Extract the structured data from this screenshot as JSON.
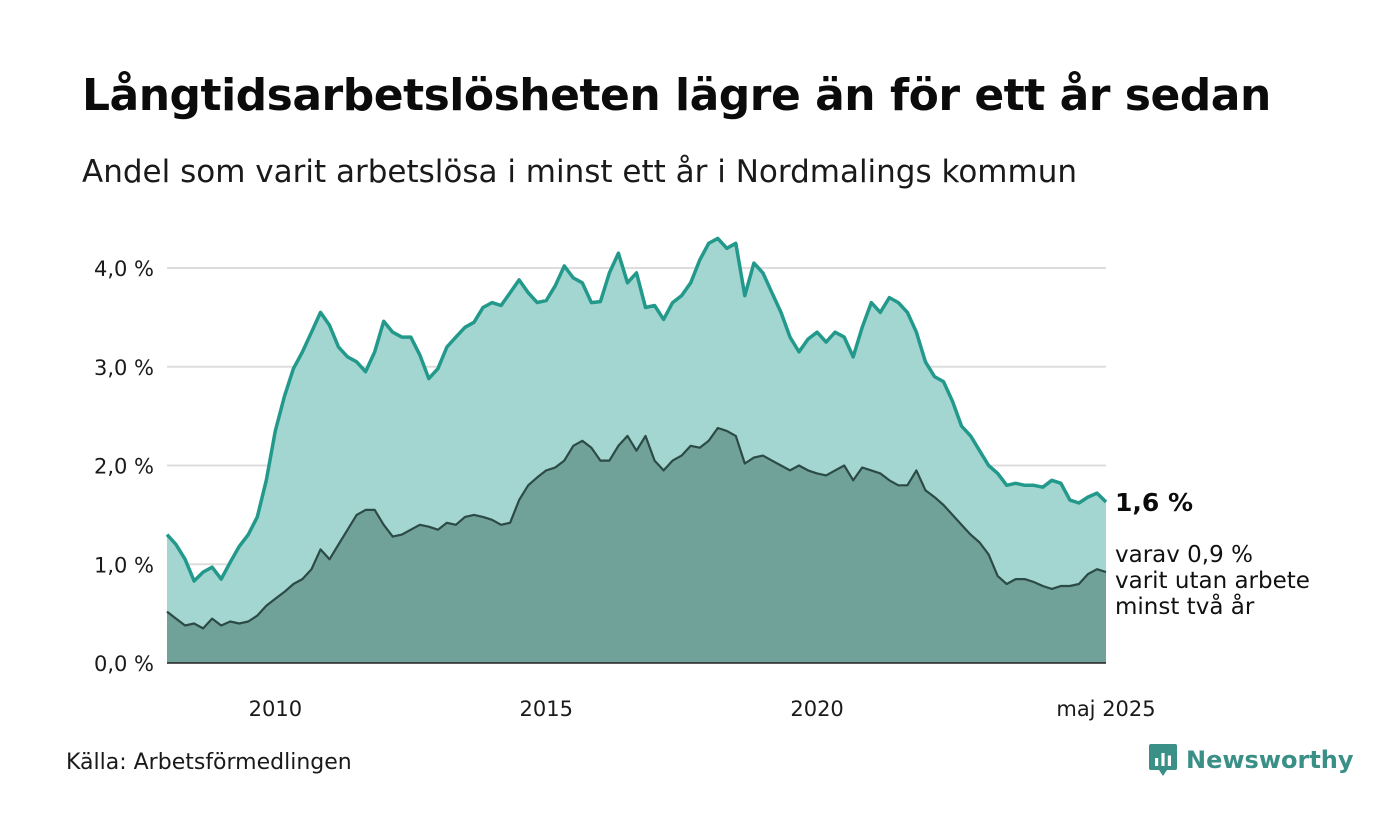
{
  "title": "Långtidsarbetslösheten lägre än för ett år sedan",
  "subtitle": "Andel som varit arbetslösa i minst ett år i Nordmalings kommun",
  "source": "Källa: Arbetsförmedlingen",
  "brand": "Newsworthy",
  "colors": {
    "total_fill": "#a3d6d0",
    "total_line": "#23998c",
    "sub_fill": "#71a29a",
    "sub_line": "#2c4a46",
    "grid": "#dddddd",
    "brand": "#3a8f86"
  },
  "end_labels": {
    "total": "1,6 %",
    "sub_line1": "varav 0,9 %",
    "sub_line2": "varit utan arbete",
    "sub_line3": "minst två år"
  },
  "chart_data": {
    "type": "area",
    "title": "Långtidsarbetslösheten lägre än för ett år sedan",
    "subtitle": "Andel som varit arbetslösa i minst ett år i Nordmalings kommun",
    "xlim": [
      "2008-01",
      "2025-05"
    ],
    "ylim": [
      0,
      4.0
    ],
    "y_ticks": [
      "0,0 %",
      "1,0 %",
      "2,0 %",
      "3,0 %",
      "4,0 %"
    ],
    "y_tick_values": [
      0,
      1,
      2,
      3,
      4
    ],
    "x_ticks": [
      "2010",
      "2015",
      "2020",
      "maj 2025"
    ],
    "x_tick_dates": [
      "2010-01",
      "2015-01",
      "2020-01",
      "2025-05"
    ],
    "grid": true,
    "series": [
      {
        "name": "1,6 %",
        "points": [
          [
            "2008-01",
            1.3
          ],
          [
            "2008-03",
            1.2
          ],
          [
            "2008-05",
            1.05
          ],
          [
            "2008-07",
            0.83
          ],
          [
            "2008-09",
            0.92
          ],
          [
            "2008-11",
            0.97
          ],
          [
            "2009-01",
            0.85
          ],
          [
            "2009-03",
            1.02
          ],
          [
            "2009-05",
            1.18
          ],
          [
            "2009-07",
            1.3
          ],
          [
            "2009-09",
            1.48
          ],
          [
            "2009-11",
            1.85
          ],
          [
            "2010-01",
            2.35
          ],
          [
            "2010-03",
            2.7
          ],
          [
            "2010-05",
            2.98
          ],
          [
            "2010-07",
            3.15
          ],
          [
            "2010-09",
            3.35
          ],
          [
            "2010-11",
            3.55
          ],
          [
            "2011-01",
            3.42
          ],
          [
            "2011-03",
            3.2
          ],
          [
            "2011-05",
            3.1
          ],
          [
            "2011-07",
            3.05
          ],
          [
            "2011-09",
            2.95
          ],
          [
            "2011-11",
            3.15
          ],
          [
            "2012-01",
            3.46
          ],
          [
            "2012-03",
            3.35
          ],
          [
            "2012-05",
            3.3
          ],
          [
            "2012-07",
            3.3
          ],
          [
            "2012-09",
            3.12
          ],
          [
            "2012-11",
            2.88
          ],
          [
            "2013-01",
            2.98
          ],
          [
            "2013-03",
            3.2
          ],
          [
            "2013-05",
            3.3
          ],
          [
            "2013-07",
            3.4
          ],
          [
            "2013-09",
            3.45
          ],
          [
            "2013-11",
            3.6
          ],
          [
            "2014-01",
            3.65
          ],
          [
            "2014-03",
            3.62
          ],
          [
            "2014-05",
            3.75
          ],
          [
            "2014-07",
            3.88
          ],
          [
            "2014-09",
            3.75
          ],
          [
            "2014-11",
            3.65
          ],
          [
            "2015-01",
            3.67
          ],
          [
            "2015-03",
            3.82
          ],
          [
            "2015-05",
            4.02
          ],
          [
            "2015-07",
            3.9
          ],
          [
            "2015-09",
            3.85
          ],
          [
            "2015-11",
            3.65
          ],
          [
            "2016-01",
            3.66
          ],
          [
            "2016-03",
            3.95
          ],
          [
            "2016-05",
            4.15
          ],
          [
            "2016-07",
            3.85
          ],
          [
            "2016-09",
            3.95
          ],
          [
            "2016-11",
            3.6
          ],
          [
            "2017-01",
            3.62
          ],
          [
            "2017-03",
            3.48
          ],
          [
            "2017-05",
            3.65
          ],
          [
            "2017-07",
            3.72
          ],
          [
            "2017-09",
            3.85
          ],
          [
            "2017-11",
            4.08
          ],
          [
            "2018-01",
            4.25
          ],
          [
            "2018-03",
            4.3
          ],
          [
            "2018-05",
            4.2
          ],
          [
            "2018-07",
            4.25
          ],
          [
            "2018-09",
            3.72
          ],
          [
            "2018-11",
            4.05
          ],
          [
            "2019-01",
            3.95
          ],
          [
            "2019-03",
            3.75
          ],
          [
            "2019-05",
            3.55
          ],
          [
            "2019-07",
            3.3
          ],
          [
            "2019-09",
            3.15
          ],
          [
            "2019-11",
            3.28
          ],
          [
            "2020-01",
            3.35
          ],
          [
            "2020-03",
            3.25
          ],
          [
            "2020-05",
            3.35
          ],
          [
            "2020-07",
            3.3
          ],
          [
            "2020-09",
            3.1
          ],
          [
            "2020-11",
            3.4
          ],
          [
            "2021-01",
            3.65
          ],
          [
            "2021-03",
            3.55
          ],
          [
            "2021-05",
            3.7
          ],
          [
            "2021-07",
            3.65
          ],
          [
            "2021-09",
            3.55
          ],
          [
            "2021-11",
            3.35
          ],
          [
            "2022-01",
            3.05
          ],
          [
            "2022-03",
            2.9
          ],
          [
            "2022-05",
            2.85
          ],
          [
            "2022-07",
            2.65
          ],
          [
            "2022-09",
            2.4
          ],
          [
            "2022-11",
            2.3
          ],
          [
            "2023-01",
            2.15
          ],
          [
            "2023-03",
            2.0
          ],
          [
            "2023-05",
            1.92
          ],
          [
            "2023-07",
            1.8
          ],
          [
            "2023-09",
            1.82
          ],
          [
            "2023-11",
            1.8
          ],
          [
            "2024-01",
            1.8
          ],
          [
            "2024-03",
            1.78
          ],
          [
            "2024-05",
            1.85
          ],
          [
            "2024-07",
            1.82
          ],
          [
            "2024-09",
            1.65
          ],
          [
            "2024-11",
            1.62
          ],
          [
            "2025-01",
            1.68
          ],
          [
            "2025-03",
            1.72
          ],
          [
            "2025-05",
            1.63
          ]
        ]
      },
      {
        "name": "varav 0,9 %",
        "points": [
          [
            "2008-01",
            0.52
          ],
          [
            "2008-03",
            0.45
          ],
          [
            "2008-05",
            0.38
          ],
          [
            "2008-07",
            0.4
          ],
          [
            "2008-09",
            0.35
          ],
          [
            "2008-11",
            0.45
          ],
          [
            "2009-01",
            0.38
          ],
          [
            "2009-03",
            0.42
          ],
          [
            "2009-05",
            0.4
          ],
          [
            "2009-07",
            0.42
          ],
          [
            "2009-09",
            0.48
          ],
          [
            "2009-11",
            0.58
          ],
          [
            "2010-01",
            0.65
          ],
          [
            "2010-03",
            0.72
          ],
          [
            "2010-05",
            0.8
          ],
          [
            "2010-07",
            0.85
          ],
          [
            "2010-09",
            0.95
          ],
          [
            "2010-11",
            1.15
          ],
          [
            "2011-01",
            1.05
          ],
          [
            "2011-03",
            1.2
          ],
          [
            "2011-05",
            1.35
          ],
          [
            "2011-07",
            1.5
          ],
          [
            "2011-09",
            1.55
          ],
          [
            "2011-11",
            1.55
          ],
          [
            "2012-01",
            1.4
          ],
          [
            "2012-03",
            1.28
          ],
          [
            "2012-05",
            1.3
          ],
          [
            "2012-07",
            1.35
          ],
          [
            "2012-09",
            1.4
          ],
          [
            "2012-11",
            1.38
          ],
          [
            "2013-01",
            1.35
          ],
          [
            "2013-03",
            1.42
          ],
          [
            "2013-05",
            1.4
          ],
          [
            "2013-07",
            1.48
          ],
          [
            "2013-09",
            1.5
          ],
          [
            "2013-11",
            1.48
          ],
          [
            "2014-01",
            1.45
          ],
          [
            "2014-03",
            1.4
          ],
          [
            "2014-05",
            1.42
          ],
          [
            "2014-07",
            1.65
          ],
          [
            "2014-09",
            1.8
          ],
          [
            "2014-11",
            1.88
          ],
          [
            "2015-01",
            1.95
          ],
          [
            "2015-03",
            1.98
          ],
          [
            "2015-05",
            2.05
          ],
          [
            "2015-07",
            2.2
          ],
          [
            "2015-09",
            2.25
          ],
          [
            "2015-11",
            2.18
          ],
          [
            "2016-01",
            2.05
          ],
          [
            "2016-03",
            2.05
          ],
          [
            "2016-05",
            2.2
          ],
          [
            "2016-07",
            2.3
          ],
          [
            "2016-09",
            2.15
          ],
          [
            "2016-11",
            2.3
          ],
          [
            "2017-01",
            2.05
          ],
          [
            "2017-03",
            1.95
          ],
          [
            "2017-05",
            2.05
          ],
          [
            "2017-07",
            2.1
          ],
          [
            "2017-09",
            2.2
          ],
          [
            "2017-11",
            2.18
          ],
          [
            "2018-01",
            2.25
          ],
          [
            "2018-03",
            2.38
          ],
          [
            "2018-05",
            2.35
          ],
          [
            "2018-07",
            2.3
          ],
          [
            "2018-09",
            2.02
          ],
          [
            "2018-11",
            2.08
          ],
          [
            "2019-01",
            2.1
          ],
          [
            "2019-03",
            2.05
          ],
          [
            "2019-05",
            2.0
          ],
          [
            "2019-07",
            1.95
          ],
          [
            "2019-09",
            2.0
          ],
          [
            "2019-11",
            1.95
          ],
          [
            "2020-01",
            1.92
          ],
          [
            "2020-03",
            1.9
          ],
          [
            "2020-05",
            1.95
          ],
          [
            "2020-07",
            2.0
          ],
          [
            "2020-09",
            1.85
          ],
          [
            "2020-11",
            1.98
          ],
          [
            "2021-01",
            1.95
          ],
          [
            "2021-03",
            1.92
          ],
          [
            "2021-05",
            1.85
          ],
          [
            "2021-07",
            1.8
          ],
          [
            "2021-09",
            1.8
          ],
          [
            "2021-11",
            1.95
          ],
          [
            "2022-01",
            1.75
          ],
          [
            "2022-03",
            1.68
          ],
          [
            "2022-05",
            1.6
          ],
          [
            "2022-07",
            1.5
          ],
          [
            "2022-09",
            1.4
          ],
          [
            "2022-11",
            1.3
          ],
          [
            "2023-01",
            1.22
          ],
          [
            "2023-03",
            1.1
          ],
          [
            "2023-05",
            0.88
          ],
          [
            "2023-07",
            0.8
          ],
          [
            "2023-09",
            0.85
          ],
          [
            "2023-11",
            0.85
          ],
          [
            "2024-01",
            0.82
          ],
          [
            "2024-03",
            0.78
          ],
          [
            "2024-05",
            0.75
          ],
          [
            "2024-07",
            0.78
          ],
          [
            "2024-09",
            0.78
          ],
          [
            "2024-11",
            0.8
          ],
          [
            "2025-01",
            0.9
          ],
          [
            "2025-03",
            0.95
          ],
          [
            "2025-05",
            0.92
          ]
        ]
      }
    ]
  }
}
